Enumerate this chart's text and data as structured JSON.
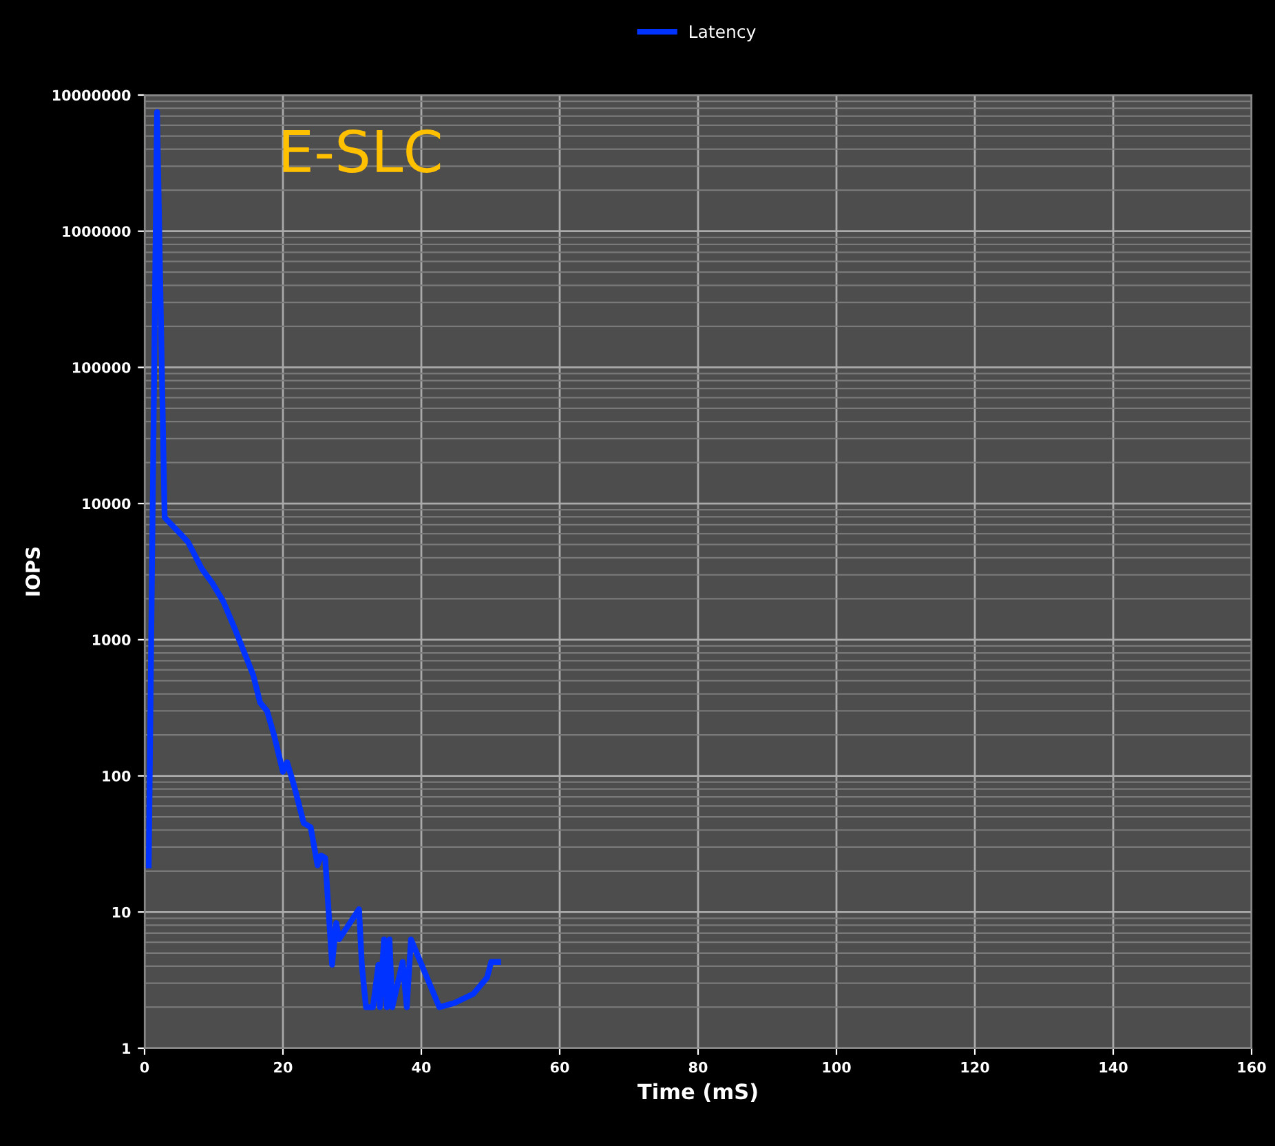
{
  "chart_data": {
    "type": "line",
    "title": "E-SLC",
    "xlabel": "Time (mS)",
    "ylabel": "IOPS",
    "log": "y",
    "xlim": [
      0,
      160
    ],
    "xticks": [
      0,
      20,
      40,
      60,
      80,
      100,
      120,
      140,
      160
    ],
    "ylim": [
      1,
      10000000
    ],
    "yticks": [
      1,
      10,
      100,
      1000,
      10000,
      100000,
      1000000,
      10000000
    ],
    "grid": true,
    "legend": "top",
    "marker": "none",
    "line_style": "solid",
    "series": [
      {
        "name": "Latency",
        "color": "#0033ff",
        "x": [
          0.6,
          1.8,
          2.9,
          5.3,
          6.3,
          8.3,
          9.8,
          11.4,
          13.2,
          14.7,
          15.7,
          16.7,
          17.7,
          18.7,
          20.0,
          20.6,
          21.6,
          23.0,
          24.0,
          25.0,
          25.5,
          26.1,
          27.1,
          27.7,
          28.1,
          31.0,
          31.4,
          32.0,
          33.0,
          33.8,
          34.0,
          34.6,
          35.0,
          35.4,
          35.8,
          37.3,
          37.9,
          38.5,
          42.6,
          44.8,
          47.5,
          49.5,
          50.1,
          51.1
        ],
        "values": [
          22,
          7500000,
          7900,
          5900,
          5200,
          3300,
          2600,
          1900,
          1150,
          740,
          550,
          345,
          300,
          200,
          107,
          126,
          85,
          45,
          42,
          22,
          26,
          25,
          4.1,
          8.3,
          6.3,
          10.5,
          4.1,
          2,
          2,
          4.1,
          2,
          6.3,
          2,
          6.3,
          2,
          4.3,
          2,
          6.3,
          2,
          2.15,
          2.5,
          3.3,
          4.3,
          4.3
        ]
      }
    ]
  }
}
